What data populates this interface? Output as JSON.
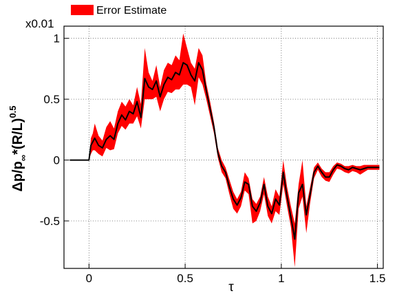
{
  "chart_data": {
    "type": "line",
    "title": "",
    "xlabel": "τ",
    "ylabel_main": "Δp/p",
    "ylabel_sub": "∞",
    "ylabel_tail": "*(R/L)",
    "ylabel_sup": "0.5",
    "y_multiplier": "x0.01",
    "xlim": [
      -0.13,
      1.53
    ],
    "ylim": [
      -0.89,
      1.1
    ],
    "grid": true,
    "x_ticks": [
      0,
      0.5,
      1,
      1.5
    ],
    "x_tick_labels": [
      "0",
      "0.5",
      "1",
      "1.5"
    ],
    "y_ticks": [
      -0.5,
      0,
      0.5,
      1
    ],
    "y_tick_labels": [
      "-0.5",
      "0",
      "0.5",
      "1"
    ],
    "legend": {
      "placement": "top-left",
      "entries": [
        {
          "label": "Error Estimate",
          "color": "#ff0000"
        }
      ]
    },
    "series": [
      {
        "type": "line",
        "color": "#000000",
        "x": [
          -0.1,
          0.0,
          0.01,
          0.02,
          0.03,
          0.05,
          0.07,
          0.09,
          0.11,
          0.13,
          0.15,
          0.17,
          0.19,
          0.21,
          0.23,
          0.25,
          0.27,
          0.29,
          0.31,
          0.33,
          0.35,
          0.37,
          0.39,
          0.41,
          0.43,
          0.45,
          0.47,
          0.49,
          0.51,
          0.53,
          0.55,
          0.57,
          0.59,
          0.61,
          0.63,
          0.65,
          0.67,
          0.69,
          0.71,
          0.73,
          0.75,
          0.77,
          0.79,
          0.81,
          0.83,
          0.85,
          0.87,
          0.89,
          0.91,
          0.93,
          0.95,
          0.97,
          0.99,
          1.01,
          1.03,
          1.05,
          1.07,
          1.09,
          1.11,
          1.13,
          1.15,
          1.17,
          1.19,
          1.21,
          1.23,
          1.25,
          1.27,
          1.29,
          1.31,
          1.33,
          1.35,
          1.37,
          1.39,
          1.41,
          1.43,
          1.45,
          1.47,
          1.49,
          1.51
        ],
        "y": [
          0.0,
          0.0,
          0.12,
          0.15,
          0.18,
          0.12,
          0.1,
          0.17,
          0.2,
          0.17,
          0.3,
          0.37,
          0.33,
          0.4,
          0.38,
          0.48,
          0.35,
          0.67,
          0.6,
          0.58,
          0.65,
          0.52,
          0.62,
          0.68,
          0.66,
          0.72,
          0.7,
          0.8,
          0.78,
          0.7,
          0.65,
          0.8,
          0.74,
          0.57,
          0.42,
          0.27,
          0.06,
          -0.05,
          -0.1,
          -0.22,
          -0.32,
          -0.37,
          -0.31,
          -0.18,
          -0.2,
          -0.38,
          -0.42,
          -0.35,
          -0.2,
          -0.38,
          -0.44,
          -0.32,
          -0.37,
          -0.1,
          -0.3,
          -0.47,
          -0.65,
          -0.27,
          -0.2,
          -0.45,
          -0.28,
          -0.1,
          -0.05,
          -0.1,
          -0.14,
          -0.14,
          -0.08,
          -0.04,
          -0.05,
          -0.07,
          -0.08,
          -0.06,
          -0.07,
          -0.08,
          -0.07,
          -0.06,
          -0.06,
          -0.06,
          -0.06
        ]
      },
      {
        "type": "area",
        "name": "Error Estimate",
        "color": "#ff0000",
        "x": [
          -0.1,
          0.0,
          0.01,
          0.02,
          0.03,
          0.05,
          0.07,
          0.09,
          0.11,
          0.13,
          0.15,
          0.17,
          0.19,
          0.21,
          0.23,
          0.25,
          0.27,
          0.29,
          0.31,
          0.33,
          0.35,
          0.37,
          0.39,
          0.41,
          0.43,
          0.45,
          0.47,
          0.49,
          0.51,
          0.53,
          0.55,
          0.57,
          0.59,
          0.61,
          0.63,
          0.65,
          0.67,
          0.69,
          0.71,
          0.73,
          0.75,
          0.77,
          0.79,
          0.81,
          0.83,
          0.85,
          0.87,
          0.89,
          0.91,
          0.93,
          0.95,
          0.97,
          0.99,
          1.01,
          1.03,
          1.05,
          1.07,
          1.09,
          1.11,
          1.13,
          1.15,
          1.17,
          1.19,
          1.21,
          1.23,
          1.25,
          1.27,
          1.29,
          1.31,
          1.33,
          1.35,
          1.37,
          1.39,
          1.41,
          1.43,
          1.45,
          1.47,
          1.49,
          1.51
        ],
        "y_upper": [
          0.0,
          0.0,
          0.18,
          0.22,
          0.3,
          0.2,
          0.16,
          0.27,
          0.32,
          0.26,
          0.4,
          0.48,
          0.44,
          0.5,
          0.45,
          0.6,
          0.46,
          0.92,
          0.72,
          0.65,
          0.78,
          0.6,
          0.74,
          0.8,
          0.78,
          0.86,
          0.82,
          1.04,
          0.92,
          0.8,
          0.75,
          0.92,
          0.86,
          0.63,
          0.48,
          0.31,
          0.1,
          0.0,
          -0.06,
          -0.16,
          -0.26,
          -0.32,
          -0.26,
          -0.1,
          -0.15,
          -0.32,
          -0.36,
          -0.3,
          -0.14,
          -0.3,
          -0.38,
          -0.24,
          -0.3,
          0.0,
          -0.22,
          -0.38,
          -0.52,
          -0.2,
          0.0,
          -0.38,
          -0.22,
          -0.06,
          -0.02,
          -0.07,
          -0.1,
          -0.1,
          -0.05,
          -0.02,
          -0.03,
          -0.05,
          -0.05,
          -0.04,
          -0.05,
          -0.05,
          -0.04,
          -0.04,
          -0.04,
          -0.04,
          -0.04
        ],
        "y_lower": [
          0.0,
          0.0,
          0.05,
          0.08,
          0.08,
          0.05,
          0.03,
          0.1,
          0.08,
          0.09,
          0.22,
          0.28,
          0.25,
          0.3,
          0.3,
          0.36,
          0.26,
          0.5,
          0.5,
          0.5,
          0.52,
          0.4,
          0.5,
          0.56,
          0.55,
          0.58,
          0.58,
          0.62,
          0.62,
          0.6,
          0.45,
          0.68,
          0.62,
          0.5,
          0.36,
          0.22,
          0.02,
          -0.1,
          -0.15,
          -0.28,
          -0.4,
          -0.44,
          -0.38,
          -0.25,
          -0.28,
          -0.52,
          -0.5,
          -0.42,
          -0.28,
          -0.46,
          -0.52,
          -0.42,
          -0.45,
          -0.2,
          -0.38,
          -0.55,
          -0.88,
          -0.4,
          -0.3,
          -0.6,
          -0.35,
          -0.15,
          -0.08,
          -0.14,
          -0.17,
          -0.18,
          -0.12,
          -0.07,
          -0.08,
          -0.1,
          -0.11,
          -0.09,
          -0.1,
          -0.12,
          -0.1,
          -0.08,
          -0.08,
          -0.08,
          -0.08
        ]
      }
    ]
  }
}
